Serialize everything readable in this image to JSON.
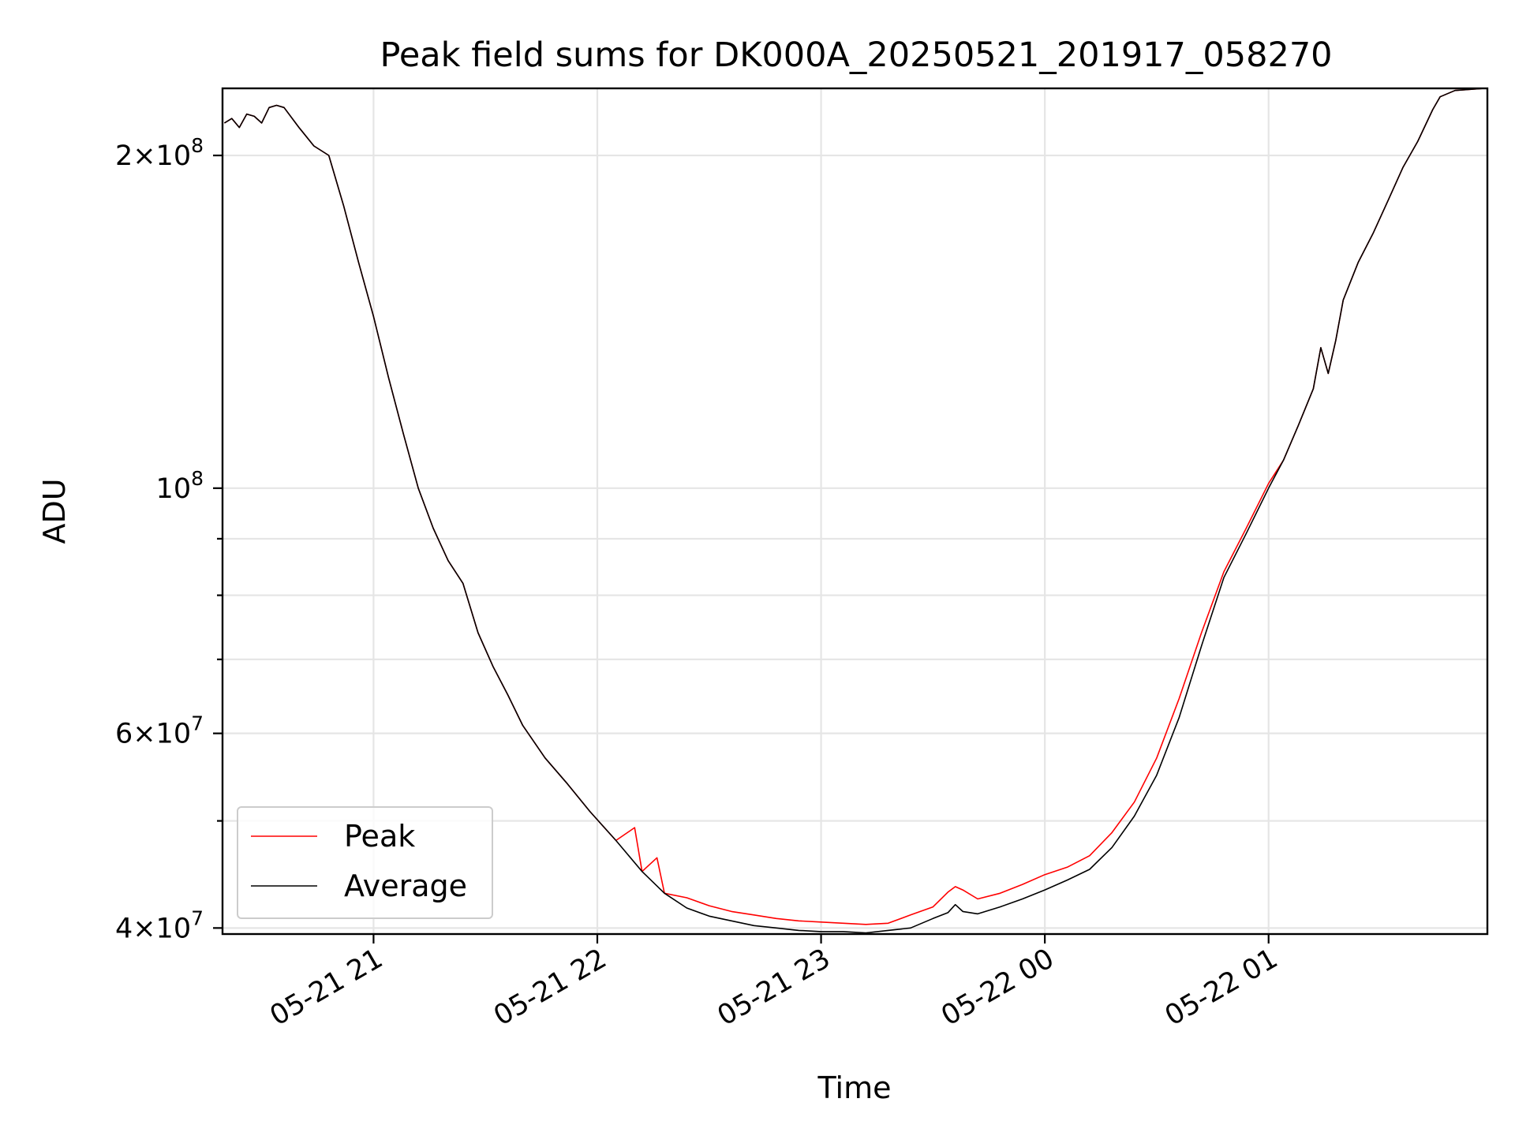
{
  "chart_data": {
    "type": "line",
    "title": "Peak field sums for DK000A_20250521_201917_058270",
    "xlabel": "Time",
    "ylabel": "ADU",
    "yscale": "log",
    "ylim": [
      39500000,
      230000000
    ],
    "xlim": [
      "2025-05-21 20:19:30",
      "2025-05-22 01:58:40"
    ],
    "grid": true,
    "legend": "lower-left",
    "x_ticks": [
      {
        "t": "2025-05-21 21:00",
        "label": "05-21 21"
      },
      {
        "t": "2025-05-21 22:00",
        "label": "05-21 22"
      },
      {
        "t": "2025-05-21 23:00",
        "label": "05-21 23"
      },
      {
        "t": "2025-05-22 00:00",
        "label": "05-22 00"
      },
      {
        "t": "2025-05-22 01:00",
        "label": "05-22 01"
      }
    ],
    "y_ticks": [
      {
        "value": 40000000,
        "mant": "4",
        "exp": "7"
      },
      {
        "value": 60000000,
        "mant": "6",
        "exp": "7"
      },
      {
        "value": 100000000,
        "mant": "",
        "exp": "8"
      },
      {
        "value": 200000000,
        "mant": "2",
        "exp": "8"
      }
    ],
    "y_minor_ticks": [
      50000000,
      70000000,
      80000000,
      90000000
    ],
    "series": [
      {
        "name": "Average",
        "color": "#000000",
        "x": [
          "2025-05-21 20:20",
          "2025-05-21 20:22",
          "2025-05-21 20:24",
          "2025-05-21 20:26",
          "2025-05-21 20:28",
          "2025-05-21 20:30",
          "2025-05-21 20:32",
          "2025-05-21 20:34",
          "2025-05-21 20:36",
          "2025-05-21 20:40",
          "2025-05-21 20:44",
          "2025-05-21 20:48",
          "2025-05-21 20:52",
          "2025-05-21 20:56",
          "2025-05-21 21:00",
          "2025-05-21 21:04",
          "2025-05-21 21:08",
          "2025-05-21 21:12",
          "2025-05-21 21:16",
          "2025-05-21 21:20",
          "2025-05-21 21:24",
          "2025-05-21 21:28",
          "2025-05-21 21:32",
          "2025-05-21 21:36",
          "2025-05-21 21:40",
          "2025-05-21 21:46",
          "2025-05-21 21:52",
          "2025-05-21 21:58",
          "2025-05-21 22:05",
          "2025-05-21 22:12",
          "2025-05-21 22:18",
          "2025-05-21 22:24",
          "2025-05-21 22:30",
          "2025-05-21 22:36",
          "2025-05-21 22:42",
          "2025-05-21 22:48",
          "2025-05-21 22:54",
          "2025-05-21 23:00",
          "2025-05-21 23:06",
          "2025-05-21 23:12",
          "2025-05-21 23:18",
          "2025-05-21 23:24",
          "2025-05-21 23:30",
          "2025-05-21 23:34",
          "2025-05-21 23:36",
          "2025-05-21 23:38",
          "2025-05-21 23:42",
          "2025-05-21 23:48",
          "2025-05-21 23:54",
          "2025-05-22 00:00",
          "2025-05-22 00:06",
          "2025-05-22 00:12",
          "2025-05-22 00:18",
          "2025-05-22 00:24",
          "2025-05-22 00:30",
          "2025-05-22 00:36",
          "2025-05-22 00:42",
          "2025-05-22 00:48",
          "2025-05-22 00:54",
          "2025-05-22 01:00",
          "2025-05-22 01:04",
          "2025-05-22 01:08",
          "2025-05-22 01:12",
          "2025-05-22 01:14",
          "2025-05-22 01:16",
          "2025-05-22 01:18",
          "2025-05-22 01:20",
          "2025-05-22 01:24",
          "2025-05-22 01:28",
          "2025-05-22 01:32",
          "2025-05-22 01:36",
          "2025-05-22 01:40",
          "2025-05-22 01:44",
          "2025-05-22 01:46",
          "2025-05-22 01:50",
          "2025-05-22 01:58"
        ],
        "values": [
          214000000,
          216000000,
          212000000,
          218000000,
          217000000,
          214000000,
          221000000,
          222000000,
          221000000,
          212000000,
          204000000,
          200000000,
          180000000,
          160000000,
          143000000,
          126000000,
          112000000,
          100000000,
          92000000,
          86000000,
          82000000,
          74000000,
          69000000,
          65000000,
          61000000,
          57000000,
          54000000,
          51000000,
          48000000,
          45000000,
          43000000,
          41700000,
          41000000,
          40600000,
          40200000,
          40000000,
          39800000,
          39700000,
          39700000,
          39600000,
          39800000,
          40000000,
          40800000,
          41300000,
          42000000,
          41400000,
          41200000,
          41800000,
          42500000,
          43300000,
          44200000,
          45200000,
          47300000,
          50500000,
          55000000,
          62000000,
          72000000,
          83000000,
          91000000,
          100000000,
          106000000,
          114000000,
          123000000,
          134000000,
          127000000,
          136000000,
          148000000,
          160000000,
          170000000,
          182000000,
          195000000,
          206000000,
          220000000,
          226000000,
          229000000,
          230000000
        ]
      },
      {
        "name": "Peak",
        "color": "#ff0000",
        "x": [
          "2025-05-21 20:20",
          "2025-05-21 20:22",
          "2025-05-21 20:24",
          "2025-05-21 20:26",
          "2025-05-21 20:28",
          "2025-05-21 20:30",
          "2025-05-21 20:32",
          "2025-05-21 20:34",
          "2025-05-21 20:36",
          "2025-05-21 20:40",
          "2025-05-21 20:44",
          "2025-05-21 20:48",
          "2025-05-21 20:52",
          "2025-05-21 20:56",
          "2025-05-21 21:00",
          "2025-05-21 21:04",
          "2025-05-21 21:08",
          "2025-05-21 21:12",
          "2025-05-21 21:16",
          "2025-05-21 21:20",
          "2025-05-21 21:24",
          "2025-05-21 21:28",
          "2025-05-21 21:32",
          "2025-05-21 21:36",
          "2025-05-21 21:40",
          "2025-05-21 21:46",
          "2025-05-21 21:52",
          "2025-05-21 21:58",
          "2025-05-21 22:05",
          "2025-05-21 22:10",
          "2025-05-21 22:12",
          "2025-05-21 22:16",
          "2025-05-21 22:18",
          "2025-05-21 22:24",
          "2025-05-21 22:30",
          "2025-05-21 22:36",
          "2025-05-21 22:42",
          "2025-05-21 22:48",
          "2025-05-21 22:54",
          "2025-05-21 23:00",
          "2025-05-21 23:06",
          "2025-05-21 23:12",
          "2025-05-21 23:18",
          "2025-05-21 23:24",
          "2025-05-21 23:30",
          "2025-05-21 23:34",
          "2025-05-21 23:36",
          "2025-05-21 23:38",
          "2025-05-21 23:42",
          "2025-05-21 23:48",
          "2025-05-21 23:54",
          "2025-05-22 00:00",
          "2025-05-22 00:06",
          "2025-05-22 00:12",
          "2025-05-22 00:18",
          "2025-05-22 00:24",
          "2025-05-22 00:30",
          "2025-05-22 00:36",
          "2025-05-22 00:42",
          "2025-05-22 00:48",
          "2025-05-22 00:54",
          "2025-05-22 01:00",
          "2025-05-22 01:04",
          "2025-05-22 01:08",
          "2025-05-22 01:12",
          "2025-05-22 01:14",
          "2025-05-22 01:16",
          "2025-05-22 01:18",
          "2025-05-22 01:20",
          "2025-05-22 01:24",
          "2025-05-22 01:28",
          "2025-05-22 01:32",
          "2025-05-22 01:36",
          "2025-05-22 01:40",
          "2025-05-22 01:44",
          "2025-05-22 01:46",
          "2025-05-22 01:50",
          "2025-05-22 01:58"
        ],
        "values": [
          214000000,
          216000000,
          212000000,
          218000000,
          217000000,
          214000000,
          221000000,
          222000000,
          221000000,
          212000000,
          204000000,
          200000000,
          180000000,
          160000000,
          143000000,
          126000000,
          112000000,
          100000000,
          92000000,
          86000000,
          82000000,
          74000000,
          69000000,
          65000000,
          61000000,
          57000000,
          54000000,
          51000000,
          48000000,
          49300000,
          45000000,
          46300000,
          43000000,
          42600000,
          41900000,
          41400000,
          41100000,
          40800000,
          40600000,
          40500000,
          40400000,
          40300000,
          40400000,
          41100000,
          41800000,
          43100000,
          43600000,
          43300000,
          42500000,
          43000000,
          43800000,
          44700000,
          45400000,
          46500000,
          48800000,
          52000000,
          57000000,
          64500000,
          74000000,
          84000000,
          92000000,
          101000000,
          106000000,
          114000000,
          123000000,
          134000000,
          127000000,
          136000000,
          148000000,
          160000000,
          170000000,
          182000000,
          195000000,
          206000000,
          220000000,
          226000000,
          229000000,
          230000000
        ]
      }
    ]
  }
}
